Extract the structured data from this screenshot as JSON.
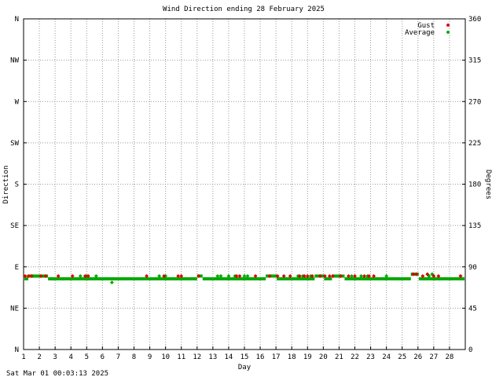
{
  "chart_data": {
    "type": "scatter",
    "title": "Wind Direction ending 28 February 2025",
    "xlabel": "Day",
    "ylabel_left": "Direction",
    "ylabel_right": "Degrees",
    "timestamp": "Sat Mar 01 00:03:13 2025",
    "xlim": [
      1,
      29
    ],
    "ylim": [
      0,
      360
    ],
    "grid": true,
    "legend_position": "top-right",
    "x_ticks": [
      1,
      2,
      3,
      4,
      5,
      6,
      7,
      8,
      9,
      10,
      11,
      12,
      13,
      14,
      15,
      16,
      17,
      18,
      19,
      20,
      21,
      22,
      23,
      24,
      25,
      26,
      27,
      28
    ],
    "y_ticks_left": [
      {
        "value": 360,
        "label": "N"
      },
      {
        "value": 315,
        "label": "NW"
      },
      {
        "value": 270,
        "label": "W"
      },
      {
        "value": 225,
        "label": "SW"
      },
      {
        "value": 180,
        "label": "S"
      },
      {
        "value": 135,
        "label": "SE"
      },
      {
        "value": 90,
        "label": "E"
      },
      {
        "value": 45,
        "label": "NE"
      },
      {
        "value": 0,
        "label": "N"
      }
    ],
    "y_ticks_right": [
      360,
      315,
      270,
      225,
      180,
      135,
      90,
      45,
      0
    ],
    "series": [
      {
        "name": "Gust",
        "color": "#dd0000",
        "points": [
          [
            1.1,
            80
          ],
          [
            1.3,
            80
          ],
          [
            1.5,
            80
          ],
          [
            2.1,
            80
          ],
          [
            2.4,
            80
          ],
          [
            3.2,
            80
          ],
          [
            4.1,
            80
          ],
          [
            4.9,
            80
          ],
          [
            5.1,
            80
          ],
          [
            8.8,
            80
          ],
          [
            9.9,
            80
          ],
          [
            10.8,
            80
          ],
          [
            11.0,
            80
          ],
          [
            12.1,
            80
          ],
          [
            14.5,
            80
          ],
          [
            14.7,
            80
          ],
          [
            15.7,
            80
          ],
          [
            16.6,
            80
          ],
          [
            17.1,
            80
          ],
          [
            17.5,
            80
          ],
          [
            17.9,
            80
          ],
          [
            18.5,
            80
          ],
          [
            18.8,
            80
          ],
          [
            19.0,
            80
          ],
          [
            19.3,
            80
          ],
          [
            19.8,
            80
          ],
          [
            20.1,
            80
          ],
          [
            20.4,
            80
          ],
          [
            20.6,
            80
          ],
          [
            21.1,
            80
          ],
          [
            21.6,
            80
          ],
          [
            22.0,
            80
          ],
          [
            22.6,
            80
          ],
          [
            22.9,
            80
          ],
          [
            23.2,
            80
          ],
          [
            25.7,
            82
          ],
          [
            25.9,
            82
          ],
          [
            26.3,
            80
          ],
          [
            26.6,
            82
          ],
          [
            27.0,
            80
          ],
          [
            27.3,
            80
          ],
          [
            28.7,
            80
          ]
        ]
      },
      {
        "name": "Average",
        "color": "#00aa00",
        "segments": [
          {
            "from": 1.05,
            "to": 1.3,
            "value": 77
          },
          {
            "from": 1.3,
            "to": 2.55,
            "value": 80
          },
          {
            "from": 2.55,
            "to": 12.0,
            "value": 77
          },
          {
            "from": 12.0,
            "to": 12.35,
            "value": 80
          },
          {
            "from": 12.35,
            "to": 16.35,
            "value": 77
          },
          {
            "from": 16.35,
            "to": 17.05,
            "value": 80
          },
          {
            "from": 17.05,
            "to": 19.45,
            "value": 77
          },
          {
            "from": 19.45,
            "to": 20.05,
            "value": 80
          },
          {
            "from": 20.05,
            "to": 20.55,
            "value": 77
          },
          {
            "from": 20.55,
            "to": 21.35,
            "value": 80
          },
          {
            "from": 21.35,
            "to": 25.55,
            "value": 77
          },
          {
            "from": 25.55,
            "to": 26.05,
            "value": 82
          },
          {
            "from": 26.05,
            "to": 28.95,
            "value": 77
          }
        ],
        "points": [
          [
            1.6,
            80
          ],
          [
            2.8,
            77
          ],
          [
            3.5,
            77
          ],
          [
            4.6,
            80
          ],
          [
            5.0,
            80
          ],
          [
            5.6,
            80
          ],
          [
            6.6,
            73
          ],
          [
            9.6,
            80
          ],
          [
            10.0,
            80
          ],
          [
            13.3,
            80
          ],
          [
            13.5,
            80
          ],
          [
            14.0,
            80
          ],
          [
            14.4,
            80
          ],
          [
            15.0,
            80
          ],
          [
            15.2,
            80
          ],
          [
            18.4,
            80
          ],
          [
            18.7,
            80
          ],
          [
            19.2,
            80
          ],
          [
            21.0,
            80
          ],
          [
            21.8,
            80
          ],
          [
            22.4,
            80
          ],
          [
            22.8,
            80
          ],
          [
            24.0,
            80
          ],
          [
            26.4,
            77
          ],
          [
            26.7,
            80
          ],
          [
            26.9,
            82
          ],
          [
            27.1,
            77
          ],
          [
            27.4,
            77
          ],
          [
            28.7,
            80
          ]
        ]
      }
    ]
  }
}
